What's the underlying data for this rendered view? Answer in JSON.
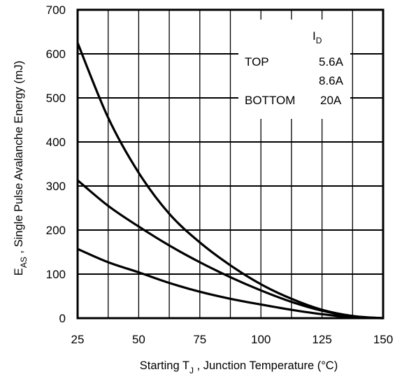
{
  "chart_data": {
    "type": "line",
    "xlabel_prefix": "Starting T",
    "xlabel_sub": "J",
    "xlabel_suffix": " , Junction Temperature (°C)",
    "ylabel_prefix": "E",
    "ylabel_sub": "AS",
    "ylabel_suffix": " , Single Pulse Avalanche Energy (mJ)",
    "xlim": [
      25,
      150
    ],
    "ylim": [
      0,
      700
    ],
    "x_ticks": [
      "25",
      "50",
      "75",
      "100",
      "125",
      "150"
    ],
    "y_ticks": [
      "0",
      "100",
      "200",
      "300",
      "400",
      "500",
      "600",
      "700"
    ],
    "grid": true,
    "legend": {
      "title_prefix": "I",
      "title_sub": "D",
      "rows": [
        {
          "position": "TOP",
          "value": "5.6A"
        },
        {
          "position": "",
          "value": "8.6A"
        },
        {
          "position": "BOTTOM",
          "value": "20A"
        }
      ]
    },
    "series": [
      {
        "label": "5.6A",
        "x": [
          25,
          37.5,
          50,
          62.5,
          75,
          87.5,
          100,
          112.5,
          125,
          137.5,
          150
        ],
        "y": [
          625,
          455,
          330,
          237,
          172,
          120,
          77,
          44,
          19,
          5,
          0
        ]
      },
      {
        "label": "8.6A",
        "x": [
          25,
          37.5,
          50,
          62.5,
          75,
          87.5,
          100,
          112.5,
          125,
          137.5,
          150
        ],
        "y": [
          313,
          255,
          208,
          165,
          127,
          93,
          63,
          37,
          17,
          4,
          0
        ]
      },
      {
        "label": "20A",
        "x": [
          25,
          37.5,
          50,
          62.5,
          75,
          87.5,
          100,
          112.5,
          125,
          137.5,
          150
        ],
        "y": [
          157,
          127,
          104,
          80,
          60,
          44,
          31,
          19,
          9,
          2,
          0
        ]
      }
    ]
  }
}
